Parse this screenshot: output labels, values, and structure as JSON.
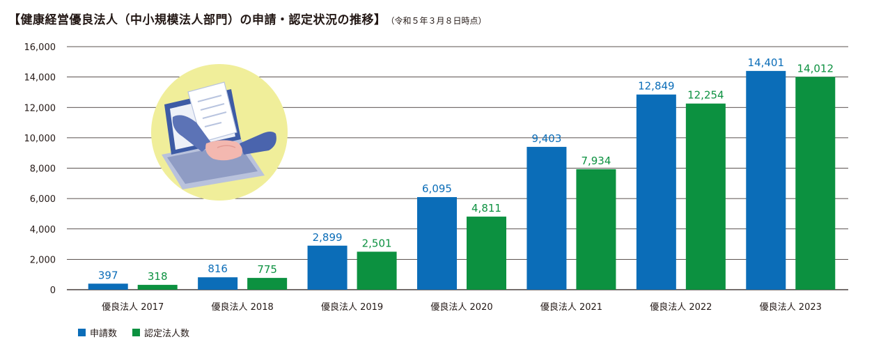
{
  "title": "【健康経営優良法人（中小規模法人部門）の申請・認定状況の推移】",
  "note": "（令和５年３月８日時点）",
  "colors": {
    "applications": "#0b6db8",
    "certified": "#0c9140",
    "grid": "#231815",
    "illustration_circle": "#f0ee9a"
  },
  "chart_data": {
    "type": "bar",
    "categories": [
      "優良法人 2017",
      "優良法人 2018",
      "優良法人 2019",
      "優良法人 2020",
      "優良法人 2021",
      "優良法人 2022",
      "優良法人 2023"
    ],
    "series": [
      {
        "name": "申請数",
        "values": [
          397,
          816,
          2899,
          6095,
          9403,
          12849,
          14401
        ],
        "labels": [
          "397",
          "816",
          "2,899",
          "6,095",
          "9,403",
          "12,849",
          "14,401"
        ]
      },
      {
        "name": "認定法人数",
        "values": [
          318,
          775,
          2501,
          4811,
          7934,
          12254,
          14012
        ],
        "labels": [
          "318",
          "775",
          "2,501",
          "4,811",
          "7,934",
          "12,254",
          "14,012"
        ]
      }
    ],
    "yticks": [
      0,
      2000,
      4000,
      6000,
      8000,
      10000,
      12000,
      14000,
      16000
    ],
    "ytick_labels": [
      "0",
      "2,000",
      "4,000",
      "6,000",
      "8,000",
      "10,000",
      "12,000",
      "14,000",
      "16,000"
    ],
    "ylim": [
      0,
      16000
    ],
    "grid": true,
    "legend_position": "bottom-left"
  }
}
